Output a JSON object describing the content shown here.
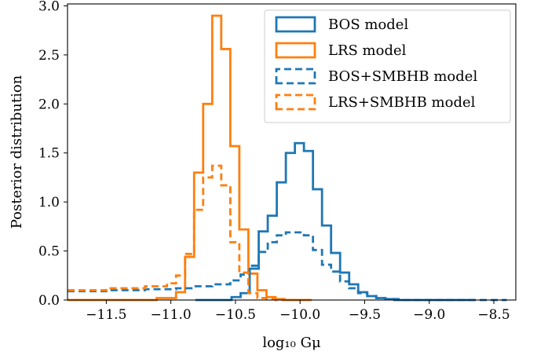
{
  "chart_data": {
    "type": "line",
    "title": "",
    "xlabel": "log₁₀ Gμ",
    "ylabel": "Posterior distribution",
    "xlim": [
      -11.8,
      -8.33
    ],
    "ylim": [
      0,
      3.02
    ],
    "xticks": [
      -11.5,
      -11.0,
      -10.5,
      -10.0,
      -9.5,
      -9.0,
      -8.5
    ],
    "xtick_labels": [
      "−11.5",
      "−11.0",
      "−10.5",
      "−10.0",
      "−9.5",
      "−9.0",
      "−8.5"
    ],
    "yticks": [
      0,
      0.5,
      1.0,
      1.5,
      2.0,
      2.5,
      3.0
    ],
    "ytick_labels": [
      "0.0",
      "0.5",
      "1.0",
      "1.5",
      "2.0",
      "2.5",
      "3.0"
    ],
    "grid": false,
    "legend_position": "top-right",
    "series": [
      {
        "name": "BOS model",
        "style": "solid",
        "color": "#1f77b4",
        "bin_edges": [
          -10.81,
          -10.74,
          -10.67,
          -10.6,
          -10.53,
          -10.46,
          -10.39,
          -10.32,
          -10.25,
          -10.18,
          -10.11,
          -10.04,
          -9.97,
          -9.9,
          -9.83,
          -9.76,
          -9.69,
          -9.62,
          -9.55,
          -9.48,
          -9.41,
          -9.34,
          -9.27,
          -9.2,
          -9.13,
          -9.06,
          -8.99,
          -8.92,
          -8.85,
          -8.78,
          -8.71,
          -8.64
        ],
        "values": [
          0.0,
          0.0,
          0.0,
          0.0,
          0.03,
          0.07,
          0.32,
          0.7,
          0.86,
          1.2,
          1.5,
          1.6,
          1.52,
          1.13,
          0.76,
          0.48,
          0.28,
          0.16,
          0.08,
          0.04,
          0.02,
          0.01,
          0.0,
          0.0,
          0.0,
          0.0,
          0.0,
          0.0,
          0.0,
          0.0,
          0.0
        ]
      },
      {
        "name": "LRS model",
        "style": "solid",
        "color": "#ff7f0e",
        "bin_edges": [
          -11.8,
          -11.57,
          -11.34,
          -11.11,
          -10.96,
          -10.89,
          -10.82,
          -10.75,
          -10.68,
          -10.61,
          -10.54,
          -10.47,
          -10.4,
          -10.33,
          -10.26,
          -10.19,
          -10.12,
          -10.05,
          -9.98,
          -9.91
        ],
        "values": [
          0.0,
          0.0,
          0.0,
          0.02,
          0.08,
          0.44,
          1.3,
          2.0,
          2.9,
          2.56,
          1.57,
          0.72,
          0.27,
          0.1,
          0.03,
          0.01,
          0.0,
          0.0,
          0.0
        ]
      },
      {
        "name": "BOS+SMBHB model",
        "style": "dashed",
        "color": "#1f77b4",
        "bin_edges": [
          -11.8,
          -11.5,
          -11.2,
          -10.96,
          -10.82,
          -10.68,
          -10.54,
          -10.46,
          -10.39,
          -10.32,
          -10.25,
          -10.18,
          -10.11,
          -10.04,
          -9.97,
          -9.9,
          -9.83,
          -9.76,
          -9.69,
          -9.62,
          -9.55,
          -9.48,
          -9.41,
          -9.34,
          -9.27,
          -9.2,
          -9.13,
          -9.06,
          -8.99,
          -8.92,
          -8.85,
          -8.78,
          -8.71,
          -8.64,
          -8.4
        ],
        "values": [
          0.09,
          0.1,
          0.11,
          0.12,
          0.14,
          0.16,
          0.2,
          0.26,
          0.35,
          0.49,
          0.59,
          0.66,
          0.69,
          0.69,
          0.66,
          0.51,
          0.36,
          0.29,
          0.19,
          0.12,
          0.07,
          0.04,
          0.02,
          0.01,
          0.01,
          0.0,
          0.0,
          0.0,
          0.0,
          0.0,
          0.0,
          0.0,
          0.0,
          0.0
        ]
      },
      {
        "name": "LRS+SMBHB model",
        "style": "dashed",
        "color": "#ff7f0e",
        "bin_edges": [
          -11.8,
          -11.5,
          -11.2,
          -11.03,
          -10.96,
          -10.89,
          -10.82,
          -10.75,
          -10.68,
          -10.61,
          -10.54,
          -10.47,
          -10.4,
          -10.33,
          -10.26,
          -10.19,
          -10.12
        ],
        "values": [
          0.1,
          0.12,
          0.14,
          0.17,
          0.25,
          0.47,
          0.92,
          1.25,
          1.37,
          1.17,
          0.59,
          0.28,
          0.07,
          0.02,
          0.01,
          0.0
        ]
      }
    ]
  }
}
